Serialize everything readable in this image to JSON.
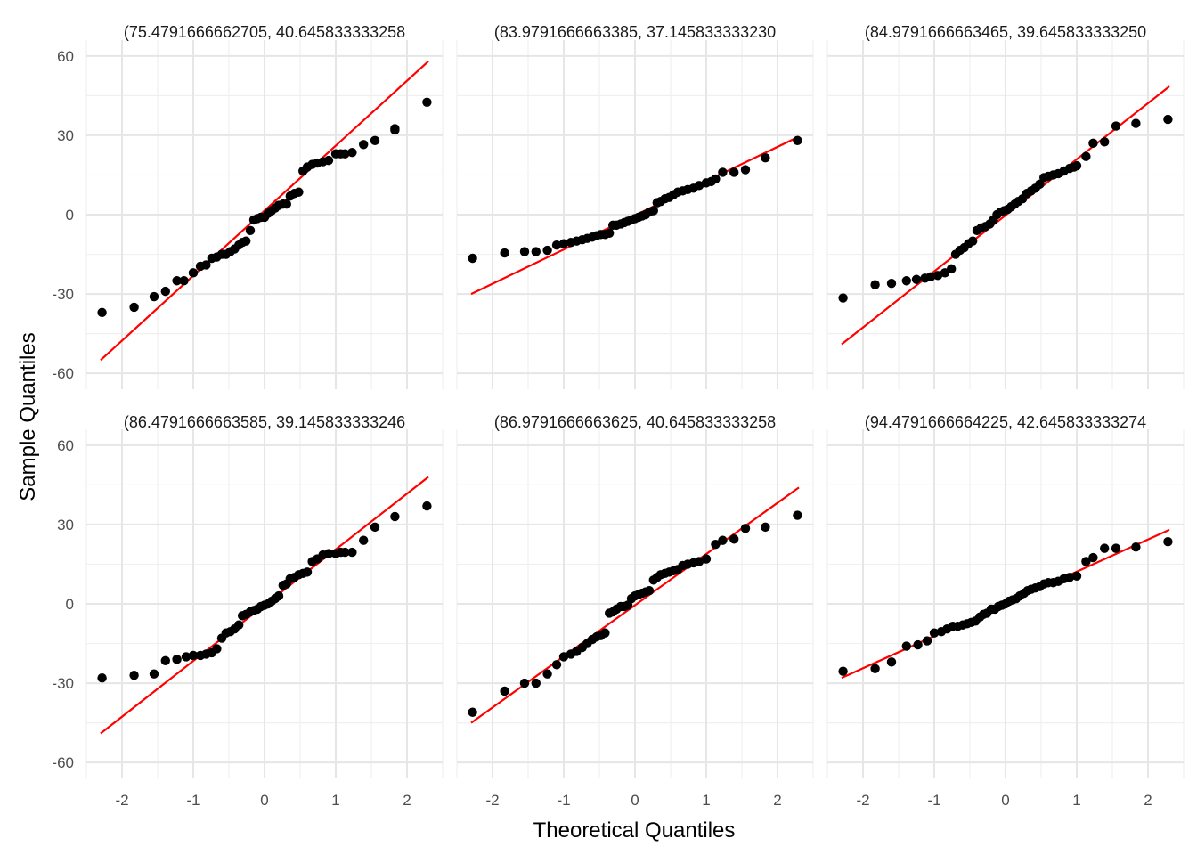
{
  "chart_data": {
    "type": "scatter",
    "xlabel": "Theoretical Quantiles",
    "ylabel": "Sample Quantiles",
    "xlim": [
      -2.5,
      2.5
    ],
    "ylim": [
      -66,
      66
    ],
    "x_ticks": [
      -2,
      -1,
      0,
      1,
      2
    ],
    "y_ticks": [
      -60,
      -30,
      0,
      30,
      60
    ],
    "grid": true,
    "point_color": "#000000",
    "line_color": "#ff0000",
    "panels": [
      {
        "title": "(75.4791666662705, 40.645833333258",
        "line": {
          "x": [
            -2.3,
            2.3
          ],
          "y": [
            -55,
            58
          ]
        },
        "points": [
          [
            -2.28,
            -37
          ],
          [
            -1.83,
            -35
          ],
          [
            -1.55,
            -31
          ],
          [
            -1.39,
            -29
          ],
          [
            -1.23,
            -25
          ],
          [
            -1.13,
            -25
          ],
          [
            -1.0,
            -22
          ],
          [
            -0.9,
            -19.5
          ],
          [
            -0.82,
            -19
          ],
          [
            -0.74,
            -16.5
          ],
          [
            -0.67,
            -16
          ],
          [
            -0.6,
            -15
          ],
          [
            -0.54,
            -15
          ],
          [
            -0.48,
            -14
          ],
          [
            -0.42,
            -13
          ],
          [
            -0.36,
            -11.5
          ],
          [
            -0.31,
            -10.5
          ],
          [
            -0.26,
            -10
          ],
          [
            -0.2,
            -6
          ],
          [
            -0.15,
            -2
          ],
          [
            -0.1,
            -1.5
          ],
          [
            -0.05,
            -1
          ],
          [
            0.0,
            -1
          ],
          [
            0.05,
            0.5
          ],
          [
            0.1,
            1.5
          ],
          [
            0.15,
            2.5
          ],
          [
            0.2,
            3.5
          ],
          [
            0.26,
            4
          ],
          [
            0.31,
            4
          ],
          [
            0.36,
            7
          ],
          [
            0.42,
            8
          ],
          [
            0.48,
            8.5
          ],
          [
            0.54,
            16.5
          ],
          [
            0.6,
            18
          ],
          [
            0.67,
            19
          ],
          [
            0.74,
            19.5
          ],
          [
            0.82,
            20
          ],
          [
            0.9,
            20.5
          ],
          [
            1.0,
            23
          ],
          [
            1.07,
            23
          ],
          [
            1.13,
            23
          ],
          [
            1.23,
            23.5
          ],
          [
            1.39,
            26.5
          ],
          [
            1.55,
            28
          ],
          [
            1.83,
            32
          ],
          [
            1.83,
            32.5
          ],
          [
            2.28,
            42.5
          ]
        ]
      },
      {
        "title": "(83.9791666663385, 37.145833333230",
        "line": {
          "x": [
            -2.3,
            2.3
          ],
          "y": [
            -30,
            29.5
          ]
        },
        "points": [
          [
            -2.28,
            -16.5
          ],
          [
            -1.83,
            -14.5
          ],
          [
            -1.55,
            -14
          ],
          [
            -1.39,
            -14
          ],
          [
            -1.23,
            -13.5
          ],
          [
            -1.1,
            -11.5
          ],
          [
            -1.0,
            -11
          ],
          [
            -0.9,
            -10.5
          ],
          [
            -0.82,
            -10
          ],
          [
            -0.74,
            -9.5
          ],
          [
            -0.67,
            -9
          ],
          [
            -0.6,
            -8.5
          ],
          [
            -0.54,
            -8
          ],
          [
            -0.48,
            -7.5
          ],
          [
            -0.42,
            -7.5
          ],
          [
            -0.36,
            -7
          ],
          [
            -0.31,
            -4
          ],
          [
            -0.26,
            -4
          ],
          [
            -0.2,
            -3.5
          ],
          [
            -0.15,
            -3
          ],
          [
            -0.1,
            -2.5
          ],
          [
            -0.05,
            -2
          ],
          [
            0.0,
            -1.5
          ],
          [
            0.05,
            -1
          ],
          [
            0.1,
            -0.5
          ],
          [
            0.15,
            0
          ],
          [
            0.2,
            1
          ],
          [
            0.26,
            1.5
          ],
          [
            0.31,
            4.5
          ],
          [
            0.36,
            5
          ],
          [
            0.42,
            6
          ],
          [
            0.48,
            6.5
          ],
          [
            0.54,
            7.5
          ],
          [
            0.6,
            8.5
          ],
          [
            0.67,
            9
          ],
          [
            0.74,
            9.5
          ],
          [
            0.82,
            10
          ],
          [
            0.9,
            11
          ],
          [
            1.0,
            12
          ],
          [
            1.07,
            12.5
          ],
          [
            1.13,
            13.5
          ],
          [
            1.23,
            16
          ],
          [
            1.39,
            16
          ],
          [
            1.55,
            17
          ],
          [
            1.83,
            21.5
          ],
          [
            2.28,
            28
          ]
        ]
      },
      {
        "title": "(84.9791666663465, 39.645833333250",
        "line": {
          "x": [
            -2.3,
            2.3
          ],
          "y": [
            -49,
            48.5
          ]
        },
        "points": [
          [
            -2.28,
            -31.5
          ],
          [
            -1.83,
            -26.5
          ],
          [
            -1.6,
            -26
          ],
          [
            -1.39,
            -25
          ],
          [
            -1.25,
            -24.5
          ],
          [
            -1.13,
            -24
          ],
          [
            -1.05,
            -23.5
          ],
          [
            -0.95,
            -23
          ],
          [
            -0.85,
            -22
          ],
          [
            -0.76,
            -20.5
          ],
          [
            -0.7,
            -15
          ],
          [
            -0.64,
            -13.5
          ],
          [
            -0.58,
            -12.5
          ],
          [
            -0.52,
            -11
          ],
          [
            -0.46,
            -10
          ],
          [
            -0.4,
            -6
          ],
          [
            -0.34,
            -5
          ],
          [
            -0.28,
            -4.5
          ],
          [
            -0.22,
            -3.5
          ],
          [
            -0.17,
            -2
          ],
          [
            -0.12,
            0
          ],
          [
            -0.07,
            1
          ],
          [
            -0.02,
            1.5
          ],
          [
            0.03,
            2
          ],
          [
            0.08,
            3
          ],
          [
            0.13,
            4
          ],
          [
            0.18,
            5
          ],
          [
            0.24,
            6
          ],
          [
            0.3,
            8
          ],
          [
            0.36,
            9
          ],
          [
            0.42,
            10
          ],
          [
            0.48,
            11.5
          ],
          [
            0.54,
            14
          ],
          [
            0.6,
            14.5
          ],
          [
            0.67,
            15
          ],
          [
            0.74,
            15.5
          ],
          [
            0.82,
            16.5
          ],
          [
            0.9,
            17.5
          ],
          [
            0.96,
            18
          ],
          [
            1.0,
            18.5
          ],
          [
            1.13,
            22
          ],
          [
            1.23,
            27
          ],
          [
            1.39,
            27.5
          ],
          [
            1.55,
            33.5
          ],
          [
            1.83,
            34.5
          ],
          [
            2.28,
            36
          ]
        ]
      },
      {
        "title": "(86.4791666663585, 39.145833333246",
        "line": {
          "x": [
            -2.3,
            2.3
          ],
          "y": [
            -49,
            48
          ]
        },
        "points": [
          [
            -2.28,
            -28
          ],
          [
            -1.83,
            -27
          ],
          [
            -1.55,
            -26.5
          ],
          [
            -1.39,
            -21.5
          ],
          [
            -1.23,
            -21
          ],
          [
            -1.1,
            -20
          ],
          [
            -1.0,
            -19.5
          ],
          [
            -0.9,
            -19.5
          ],
          [
            -0.82,
            -19
          ],
          [
            -0.74,
            -18.5
          ],
          [
            -0.67,
            -17
          ],
          [
            -0.6,
            -13
          ],
          [
            -0.54,
            -11
          ],
          [
            -0.48,
            -10.5
          ],
          [
            -0.42,
            -9.5
          ],
          [
            -0.36,
            -8
          ],
          [
            -0.31,
            -4.5
          ],
          [
            -0.26,
            -4
          ],
          [
            -0.2,
            -3
          ],
          [
            -0.15,
            -2.5
          ],
          [
            -0.1,
            -2
          ],
          [
            -0.05,
            -1
          ],
          [
            0.0,
            -0.5
          ],
          [
            0.05,
            0
          ],
          [
            0.1,
            1
          ],
          [
            0.15,
            2
          ],
          [
            0.2,
            3
          ],
          [
            0.26,
            7
          ],
          [
            0.31,
            7.5
          ],
          [
            0.36,
            9.5
          ],
          [
            0.42,
            10
          ],
          [
            0.48,
            11
          ],
          [
            0.54,
            11.5
          ],
          [
            0.6,
            12
          ],
          [
            0.67,
            16
          ],
          [
            0.74,
            17
          ],
          [
            0.82,
            18.5
          ],
          [
            0.9,
            19
          ],
          [
            1.0,
            19
          ],
          [
            1.07,
            19.5
          ],
          [
            1.13,
            19.5
          ],
          [
            1.23,
            19.5
          ],
          [
            1.39,
            24
          ],
          [
            1.55,
            29
          ],
          [
            1.83,
            33
          ],
          [
            2.28,
            37
          ]
        ]
      },
      {
        "title": "(86.9791666663625, 40.645833333258",
        "line": {
          "x": [
            -2.3,
            2.3
          ],
          "y": [
            -45,
            44
          ]
        },
        "points": [
          [
            -2.28,
            -41
          ],
          [
            -1.83,
            -33
          ],
          [
            -1.55,
            -30
          ],
          [
            -1.39,
            -30
          ],
          [
            -1.23,
            -26.5
          ],
          [
            -1.1,
            -23
          ],
          [
            -1.0,
            -20
          ],
          [
            -0.9,
            -19
          ],
          [
            -0.82,
            -18
          ],
          [
            -0.74,
            -16.5
          ],
          [
            -0.67,
            -15
          ],
          [
            -0.6,
            -13.5
          ],
          [
            -0.54,
            -12.5
          ],
          [
            -0.48,
            -12
          ],
          [
            -0.42,
            -11
          ],
          [
            -0.36,
            -3.5
          ],
          [
            -0.31,
            -3
          ],
          [
            -0.26,
            -2
          ],
          [
            -0.2,
            -1
          ],
          [
            -0.15,
            -1
          ],
          [
            -0.1,
            -0.5
          ],
          [
            -0.05,
            2
          ],
          [
            0.0,
            3
          ],
          [
            0.05,
            3.5
          ],
          [
            0.1,
            4
          ],
          [
            0.15,
            4.5
          ],
          [
            0.2,
            5
          ],
          [
            0.26,
            9
          ],
          [
            0.31,
            10
          ],
          [
            0.36,
            11
          ],
          [
            0.42,
            11.5
          ],
          [
            0.48,
            12
          ],
          [
            0.54,
            12.5
          ],
          [
            0.6,
            13
          ],
          [
            0.67,
            14.5
          ],
          [
            0.74,
            15
          ],
          [
            0.82,
            15.5
          ],
          [
            0.9,
            16
          ],
          [
            1.0,
            17
          ],
          [
            1.13,
            22.5
          ],
          [
            1.23,
            24
          ],
          [
            1.39,
            24.5
          ],
          [
            1.55,
            28.5
          ],
          [
            1.83,
            29
          ],
          [
            2.28,
            33.5
          ]
        ]
      },
      {
        "title": "(94.4791666664225, 42.645833333274",
        "line": {
          "x": [
            -2.3,
            2.3
          ],
          "y": [
            -28,
            28
          ]
        },
        "points": [
          [
            -2.28,
            -25.5
          ],
          [
            -1.83,
            -24.5
          ],
          [
            -1.6,
            -22
          ],
          [
            -1.39,
            -16
          ],
          [
            -1.23,
            -15.5
          ],
          [
            -1.1,
            -14
          ],
          [
            -1.0,
            -11
          ],
          [
            -0.9,
            -10.5
          ],
          [
            -0.82,
            -9.5
          ],
          [
            -0.74,
            -8.5
          ],
          [
            -0.67,
            -8.5
          ],
          [
            -0.6,
            -8
          ],
          [
            -0.54,
            -7.5
          ],
          [
            -0.48,
            -7
          ],
          [
            -0.42,
            -6.5
          ],
          [
            -0.36,
            -5
          ],
          [
            -0.31,
            -4
          ],
          [
            -0.26,
            -3.5
          ],
          [
            -0.2,
            -2
          ],
          [
            -0.15,
            -2
          ],
          [
            -0.1,
            -1
          ],
          [
            -0.05,
            -0.5
          ],
          [
            0.0,
            0
          ],
          [
            0.05,
            1
          ],
          [
            0.1,
            1.5
          ],
          [
            0.15,
            2
          ],
          [
            0.2,
            3
          ],
          [
            0.26,
            4
          ],
          [
            0.31,
            5
          ],
          [
            0.36,
            5.5
          ],
          [
            0.42,
            6
          ],
          [
            0.48,
            6.5
          ],
          [
            0.54,
            7.5
          ],
          [
            0.6,
            8
          ],
          [
            0.67,
            8
          ],
          [
            0.74,
            8.5
          ],
          [
            0.82,
            9.5
          ],
          [
            0.9,
            10
          ],
          [
            1.0,
            10.5
          ],
          [
            1.13,
            16
          ],
          [
            1.23,
            17.5
          ],
          [
            1.39,
            21
          ],
          [
            1.55,
            21
          ],
          [
            1.83,
            21.5
          ],
          [
            2.28,
            23.5
          ]
        ]
      }
    ]
  }
}
